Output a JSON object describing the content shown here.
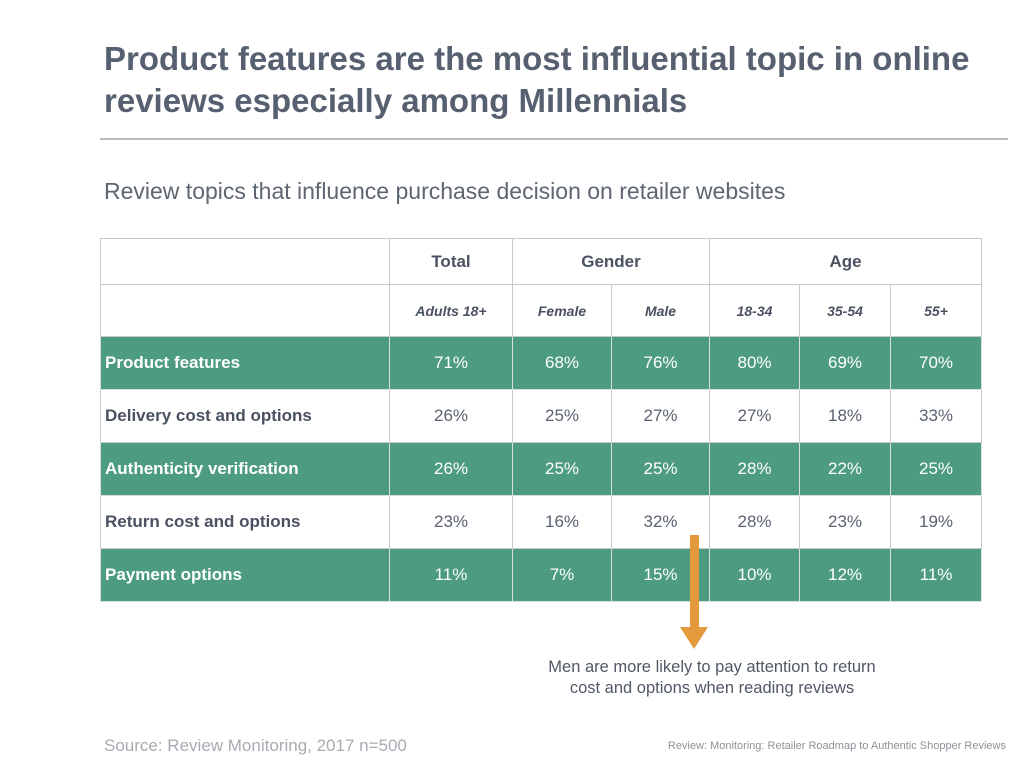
{
  "title": "Product features are the most influential topic in online reviews especially among Millennials",
  "subtitle": "Review topics that influence purchase decision on retailer websites",
  "table": {
    "group_headers": {
      "total": "Total",
      "gender": "Gender",
      "age": "Age"
    },
    "subheaders": [
      "Adults 18+",
      "Female",
      "Male",
      "18-34",
      "35-54",
      "55+"
    ],
    "rows": [
      {
        "label": "Product features",
        "values": [
          "71%",
          "68%",
          "76%",
          "80%",
          "69%",
          "70%"
        ]
      },
      {
        "label": "Delivery cost and options",
        "values": [
          "26%",
          "25%",
          "27%",
          "27%",
          "18%",
          "33%"
        ]
      },
      {
        "label": "Authenticity verification",
        "values": [
          "26%",
          "25%",
          "25%",
          "28%",
          "22%",
          "25%"
        ]
      },
      {
        "label": "Return cost and options",
        "values": [
          "23%",
          "16%",
          "32%",
          "28%",
          "23%",
          "19%"
        ]
      },
      {
        "label": "Payment options",
        "values": [
          "11%",
          "7%",
          "15%",
          "10%",
          "12%",
          "11%"
        ]
      }
    ]
  },
  "callout": {
    "line1": "Men are more likely to pay attention to return",
    "line2": "cost and options when reading reviews"
  },
  "source": "Source: Review Monitoring, 2017 n=500",
  "reference": "Review: Monitoring: Retailer Roadmap to Authentic Shopper Reviews",
  "colors": {
    "highlight_row": "#4e9c80",
    "arrow": "#e49a3c",
    "title": "#566070"
  }
}
